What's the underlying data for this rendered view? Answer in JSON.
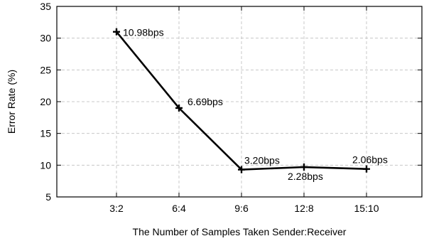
{
  "chart_data": {
    "type": "line",
    "title": "",
    "xlabel": "The Number of Samples Taken Sender:Receiver",
    "ylabel": "Error Rate (%)",
    "categories": [
      "3:2",
      "6:4",
      "9:6",
      "12:8",
      "15:10"
    ],
    "ylim": [
      5,
      35
    ],
    "yticks": [
      5,
      10,
      15,
      20,
      25,
      30,
      35
    ],
    "grid": true,
    "legend": "none",
    "series": [
      {
        "values": [
          31,
          19,
          9.3,
          9.7,
          9.4
        ],
        "labels": [
          "10.98bps",
          "6.69bps",
          "3.20bps",
          "2.28bps",
          "2.06bps"
        ],
        "color": "#000000",
        "marker": "plus"
      }
    ]
  }
}
